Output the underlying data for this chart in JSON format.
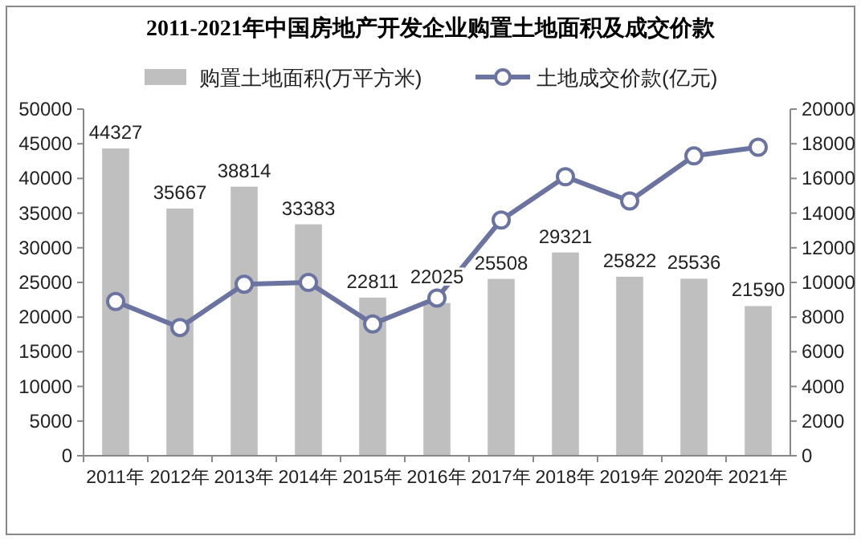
{
  "chart_data": {
    "type": "bar",
    "title": "2011-2021年中国房地产开发企业购置土地面积及成交价款",
    "categories": [
      "2011年",
      "2012年",
      "2013年",
      "2014年",
      "2015年",
      "2016年",
      "2017年",
      "2018年",
      "2019年",
      "2020年",
      "2021年"
    ],
    "series": [
      {
        "name": "购置土地面积(万平方米)",
        "color": "#bfbfbf",
        "values": [
          44327,
          35667,
          38814,
          33383,
          22811,
          22025,
          25508,
          29321,
          25822,
          25536,
          21590
        ],
        "data_labels": true
      },
      {
        "name": "土地成交价款(亿元)",
        "type": "line",
        "axis": "y2",
        "color": "#6b74a0",
        "marker": "circle",
        "values": [
          8900,
          7400,
          9900,
          10000,
          7600,
          9100,
          13600,
          16100,
          14700,
          17300,
          17800
        ]
      }
    ],
    "ylim": [
      0,
      50000
    ],
    "yticks": [
      0,
      5000,
      10000,
      15000,
      20000,
      25000,
      30000,
      35000,
      40000,
      45000,
      50000
    ],
    "y2lim": [
      0,
      20000
    ],
    "y2ticks": [
      0,
      2000,
      4000,
      6000,
      8000,
      10000,
      12000,
      14000,
      16000,
      18000,
      20000
    ],
    "legend": "top",
    "grid": false
  }
}
